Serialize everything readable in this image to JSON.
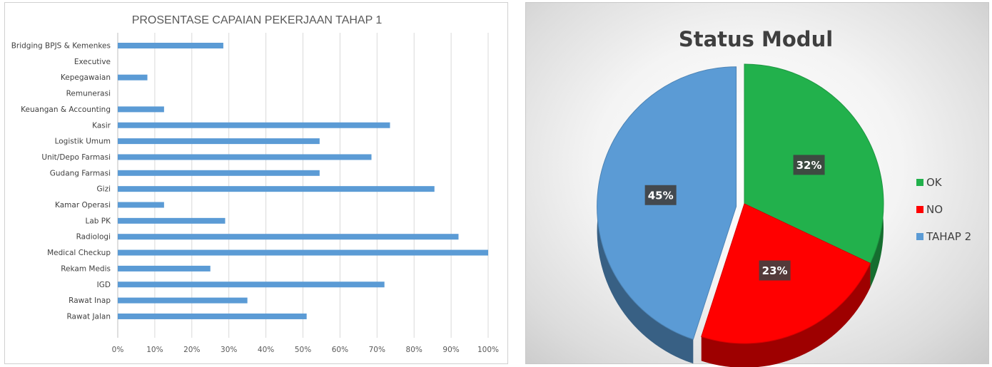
{
  "chart_data": [
    {
      "type": "bar",
      "orientation": "horizontal",
      "title": "PROSENTASE CAPAIAN PEKERJAAN TAHAP 1",
      "xlabel": "",
      "ylabel": "",
      "xlim": [
        0,
        100
      ],
      "grid": true,
      "color": "#5b9bd5",
      "ticks": [
        "0%",
        "10%",
        "20%",
        "30%",
        "40%",
        "50%",
        "60%",
        "70%",
        "80%",
        "90%",
        "100%"
      ],
      "categories": [
        "Bridging BPJS & Kemenkes",
        "Executive",
        "Kepegawaian",
        "Remunerasi",
        "Keuangan & Accounting",
        "Kasir",
        "Logistik Umum",
        "Unit/Depo Farmasi",
        "Gudang Farmasi",
        "Gizi",
        "Kamar Operasi",
        "Lab PK",
        "Radiologi",
        "Medical Checkup",
        "Rekam Medis",
        "IGD",
        "Rawat Inap",
        "Rawat Jalan"
      ],
      "values": [
        28.5,
        0,
        8,
        0,
        12.5,
        73.5,
        54.5,
        68.5,
        54.5,
        85.5,
        12.5,
        29,
        92,
        100,
        25,
        72,
        35,
        51
      ]
    },
    {
      "type": "pie",
      "title": "Status Modul",
      "legend_position": "right",
      "slices": [
        {
          "label": "OK",
          "value": 32,
          "display": "32%",
          "color": "#22b14c"
        },
        {
          "label": "NO",
          "value": 23,
          "display": "23%",
          "color": "#ff0000"
        },
        {
          "label": "TAHAP 2",
          "value": 45,
          "display": "45%",
          "color": "#5b9bd5"
        }
      ]
    }
  ]
}
